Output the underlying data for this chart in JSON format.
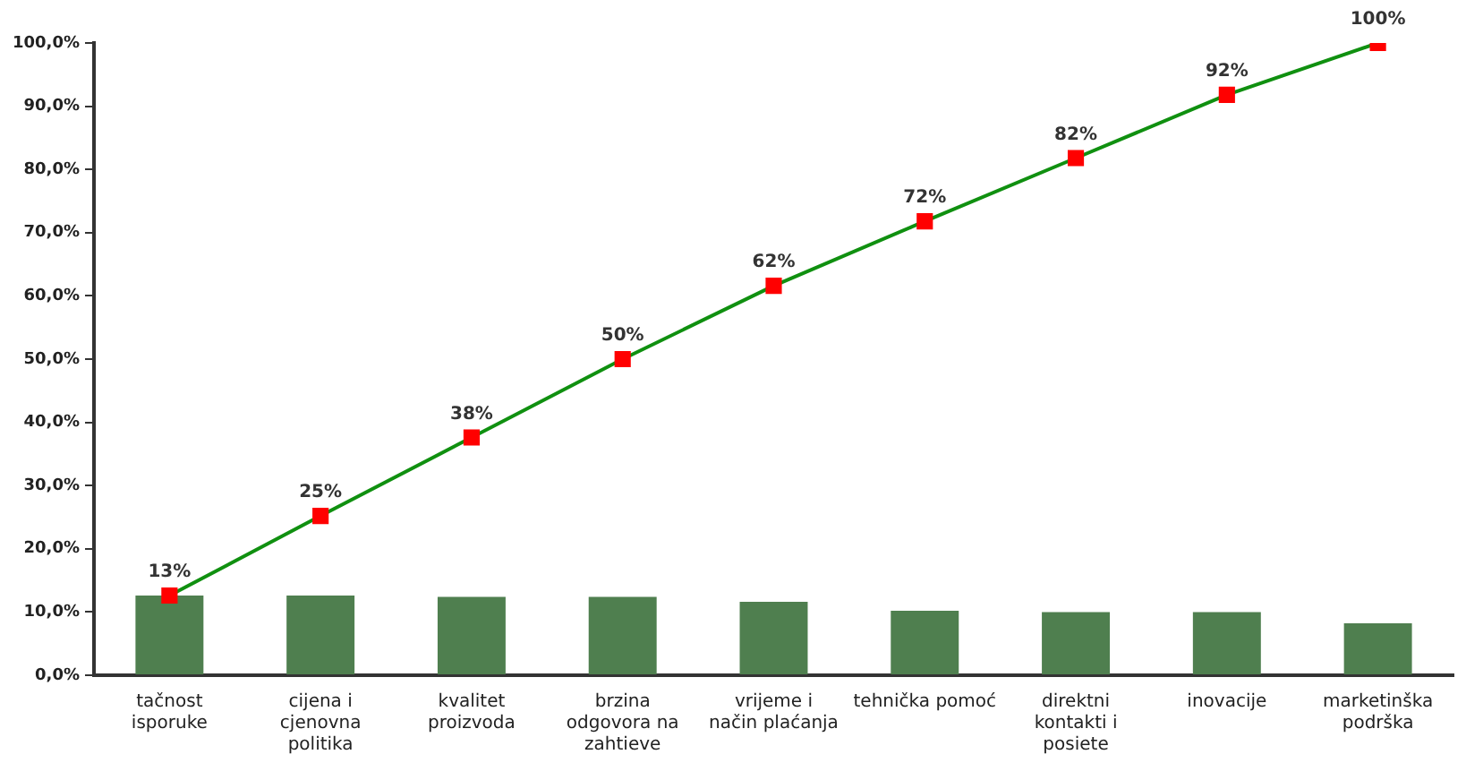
{
  "chart_data": {
    "type": "bar",
    "categories": [
      "tačnost isporuke",
      "cijena i cjenovna politika",
      "kvalitet proizvoda",
      "brzina odgovora na zahtieve",
      "vrijeme i način plaćanja",
      "tehnička pomoć",
      "direktni kontakti i posiete",
      "inovacije",
      "marketinška podrška"
    ],
    "series": [
      {
        "color": "#4f7f4f",
        "values": [
          12.6,
          12.6,
          12.4,
          12.4,
          11.6,
          10.2,
          10.0,
          10.0,
          8.2
        ]
      },
      {
        "type": "line",
        "color": "#109010",
        "colors": [
          "#ff0000",
          "#ff0000",
          "#ff0000",
          "#ff0000",
          "#ff0000",
          "#ff0000",
          "#ff0000",
          "#ff0000",
          "#ff0000"
        ],
        "values": [
          12.6,
          25.2,
          37.6,
          50.0,
          61.6,
          71.8,
          81.8,
          91.8,
          100.0
        ],
        "value_labels": [
          "13%",
          "25%",
          "38%",
          "50%",
          "62%",
          "72%",
          "82%",
          "92%",
          "100%"
        ]
      }
    ],
    "ylim": [
      0,
      100
    ],
    "yticks": [
      {
        "value": 0,
        "label": "0,0%"
      },
      {
        "value": 10,
        "label": "10,0%"
      },
      {
        "value": 20,
        "label": "20,0%"
      },
      {
        "value": 30,
        "label": "30,0%"
      },
      {
        "value": 40,
        "label": "40,0%"
      },
      {
        "value": 50,
        "label": "50,0%"
      },
      {
        "value": 60,
        "label": "60,0%"
      },
      {
        "value": 70,
        "label": "70,0%"
      },
      {
        "value": 80,
        "label": "80,0%"
      },
      {
        "value": 90,
        "label": "90,0%"
      },
      {
        "value": 100,
        "label": "100,0%"
      }
    ],
    "grid": false,
    "legend": false,
    "marker": "square",
    "line_style": "solid"
  }
}
